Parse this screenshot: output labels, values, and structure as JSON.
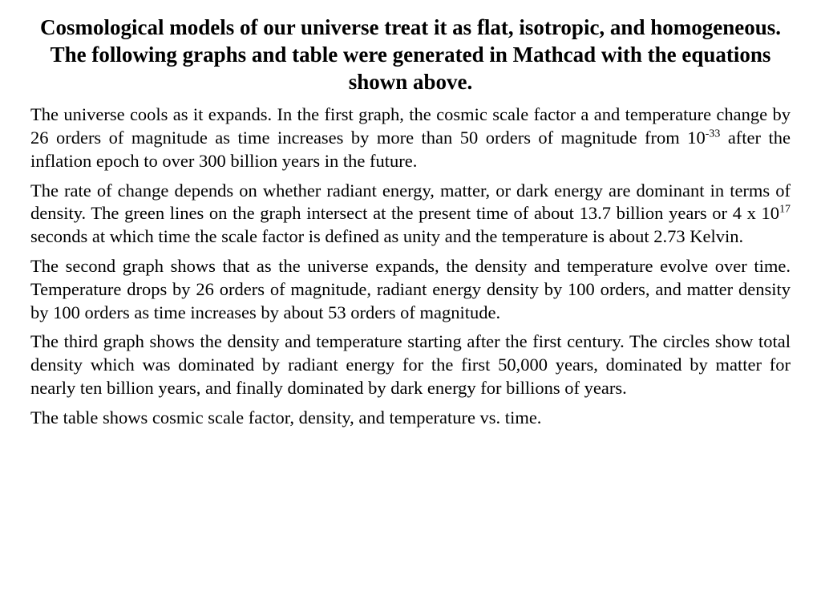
{
  "document": {
    "background_color": "#ffffff",
    "text_color": "#000000",
    "font_family": "Times New Roman",
    "heading": {
      "text": "Cosmological models of our universe treat it as flat, isotropic, and homogeneous. The following graphs and table were generated in Mathcad with the equations shown above.",
      "fontsize_pt": 20,
      "weight": "bold",
      "align": "center"
    },
    "paragraphs": [
      {
        "pre": "The universe cools as it expands. In the first graph, the cosmic scale factor a and temperature change by 26 orders of magnitude as time increases by more than 50 orders of magnitude from 10",
        "sup": "-33",
        "post": " after the inflation epoch to over 300 billion years in the future."
      },
      {
        "pre": "The rate of change depends on whether radiant energy, matter, or dark energy are dominant in terms of density. The green lines on the graph intersect at the present time of about 13.7 billion years or 4 x 10",
        "sup": "17",
        "post": " seconds at which time the scale factor is defined as unity and the temperature is about 2.73 Kelvin."
      },
      {
        "pre": "The second graph shows that as the universe expands, the density and temperature evolve over time. Temperature drops by 26 orders of magnitude, radiant energy density by 100 orders, and matter density by 100 orders as time increases by about 53 orders of magnitude.",
        "sup": null,
        "post": null
      },
      {
        "pre": "The third graph shows the density and temperature starting after the first century. The circles show total density which was dominated by radiant energy for the first 50,000 years, dominated by matter for nearly ten billion years, and finally dominated by dark energy for billions of years.",
        "sup": null,
        "post": null
      },
      {
        "pre": "The table shows cosmic scale factor, density, and temperature vs. time.",
        "sup": null,
        "post": null
      }
    ],
    "body_fontsize_pt": 17,
    "body_align": "justify",
    "body_lineheight": 1.28
  }
}
